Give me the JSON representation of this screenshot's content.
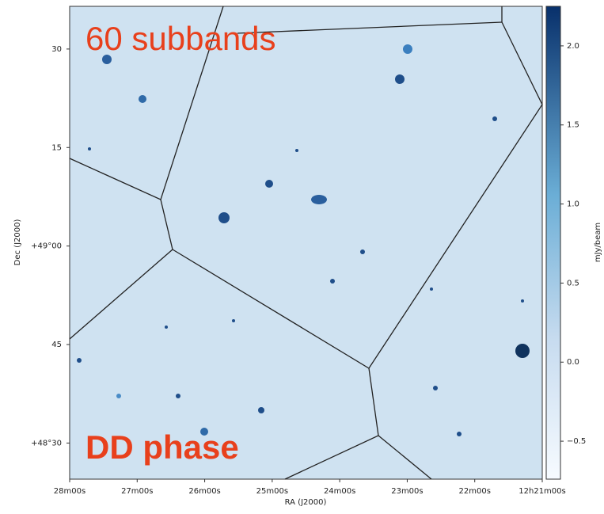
{
  "chart_data": {
    "type": "image",
    "annotations": [
      "60 subbands",
      "DD phase"
    ],
    "xlabel": "RA (J2000)",
    "ylabel": "Dec (J2000)",
    "xlim": [
      28,
      21
    ],
    "xticks": [
      {
        "value": 28,
        "label": "28m00s"
      },
      {
        "value": 27,
        "label": "27m00s"
      },
      {
        "value": 26,
        "label": "26m00s"
      },
      {
        "value": 25,
        "label": "25m00s"
      },
      {
        "value": 24,
        "label": "24m00s"
      },
      {
        "value": 23,
        "label": "23m00s"
      },
      {
        "value": 22,
        "label": "22m00s"
      },
      {
        "value": 21,
        "label": "12h21m00s"
      }
    ],
    "ylim": [
      -35.5,
      36.5
    ],
    "yticks": [
      30,
      15,
      {
        "value": 0,
        "label": "+49°00"
      },
      {
        "value": -15,
        "label": "45"
      },
      {
        "value": -30,
        "label": "+48°30"
      }
    ],
    "colorbar": {
      "label": "mJy/beam",
      "lim": [
        -0.74,
        2.25
      ],
      "ticks": [
        {
          "value": -0.5,
          "label": "−0.5"
        },
        {
          "value": 0,
          "label": "0.0"
        },
        0.5,
        {
          "value": 1,
          "label": "1.0"
        },
        1.5,
        {
          "value": 2,
          "label": "2.0"
        }
      ]
    }
  }
}
